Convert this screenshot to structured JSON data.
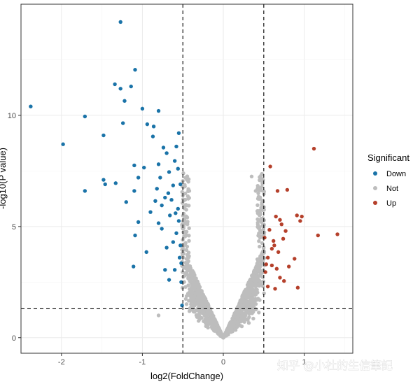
{
  "chart_data": {
    "type": "scatter",
    "title": "",
    "xlabel": "log2(FoldChange)",
    "ylabel": "-log10(P value)",
    "xlim": [
      -2.5,
      1.6
    ],
    "ylim": [
      -0.7,
      15
    ],
    "x_ticks": [
      -2,
      -1,
      0,
      1
    ],
    "y_ticks": [
      0,
      5,
      10
    ],
    "grid": true,
    "thresholds": {
      "x": [
        -0.5,
        0.5
      ],
      "y": 1.3
    },
    "legend": {
      "title": "Significant",
      "position": "right",
      "items": [
        {
          "label": "Down",
          "color": "#1a73a8"
        },
        {
          "label": "Not",
          "color": "#bdbdbd"
        },
        {
          "label": "Up",
          "color": "#b5402b"
        }
      ]
    },
    "series": [
      {
        "name": "Down",
        "color": "#1a73a8",
        "points": [
          [
            -1.27,
            14.2
          ],
          [
            -2.38,
            10.4
          ],
          [
            -1.98,
            8.7
          ],
          [
            -1.71,
            9.95
          ],
          [
            -1.71,
            6.6
          ],
          [
            -1.48,
            9.1
          ],
          [
            -1.48,
            7.1
          ],
          [
            -1.46,
            6.9
          ],
          [
            -1.34,
            11.4
          ],
          [
            -1.27,
            11.2
          ],
          [
            -1.22,
            10.65
          ],
          [
            -1.14,
            11.3
          ],
          [
            -1.24,
            9.65
          ],
          [
            -1.2,
            6.1
          ],
          [
            -1.33,
            6.95
          ],
          [
            -1.09,
            12.05
          ],
          [
            -1.1,
            7.75
          ],
          [
            -1.0,
            10.3
          ],
          [
            -0.98,
            7.65
          ],
          [
            -0.94,
            9.6
          ],
          [
            -1.05,
            7.2
          ],
          [
            -1.05,
            5.2
          ],
          [
            -1.1,
            6.6
          ],
          [
            -1.09,
            4.6
          ],
          [
            -1.11,
            3.2
          ],
          [
            -0.87,
            9.05
          ],
          [
            -0.86,
            9.5
          ],
          [
            -0.8,
            7.8
          ],
          [
            -0.84,
            6.15
          ],
          [
            -0.8,
            10.2
          ],
          [
            -0.72,
            3.05
          ],
          [
            -0.67,
            2.6
          ],
          [
            -0.95,
            3.85
          ],
          [
            -0.82,
            6.7
          ],
          [
            -0.78,
            7.2
          ],
          [
            -0.76,
            4.9
          ],
          [
            -0.74,
            8.55
          ],
          [
            -0.7,
            8.3
          ],
          [
            -0.68,
            6.5
          ],
          [
            -0.66,
            5.5
          ],
          [
            -0.62,
            4.3
          ],
          [
            -0.6,
            7.95
          ],
          [
            -0.58,
            8.6
          ],
          [
            -0.56,
            5.8
          ],
          [
            -0.55,
            9.2
          ],
          [
            -0.54,
            3.6
          ],
          [
            -0.53,
            6.9
          ],
          [
            -0.52,
            2.5
          ],
          [
            -0.51,
            1.45
          ],
          [
            -0.64,
            6.2
          ],
          [
            -0.7,
            4.05
          ],
          [
            -0.9,
            5.65
          ],
          [
            -0.6,
            3.05
          ],
          [
            -0.58,
            4.7
          ],
          [
            -0.76,
            5.95
          ],
          [
            -0.67,
            7.45
          ],
          [
            -0.62,
            6.85
          ],
          [
            -0.55,
            5.25
          ],
          [
            -0.52,
            3.35
          ],
          [
            -0.56,
            7.6
          ],
          [
            -0.72,
            6.3
          ],
          [
            -0.8,
            5.15
          ],
          [
            -0.53,
            4.15
          ],
          [
            -0.59,
            5.6
          ]
        ]
      },
      {
        "name": "Up",
        "color": "#b5402b",
        "points": [
          [
            1.12,
            8.5
          ],
          [
            1.17,
            4.6
          ],
          [
            1.41,
            4.65
          ],
          [
            0.58,
            7.7
          ],
          [
            0.67,
            6.6
          ],
          [
            0.79,
            6.65
          ],
          [
            0.62,
            4.35
          ],
          [
            0.72,
            5.1
          ],
          [
            0.91,
            5.5
          ],
          [
            0.97,
            5.45
          ],
          [
            0.95,
            5.25
          ],
          [
            0.77,
            4.8
          ],
          [
            0.88,
            3.55
          ],
          [
            0.92,
            2.25
          ],
          [
            0.55,
            2.3
          ],
          [
            0.52,
            2.95
          ],
          [
            0.55,
            3.6
          ],
          [
            0.6,
            4.0
          ],
          [
            0.63,
            4.15
          ],
          [
            0.68,
            3.85
          ],
          [
            0.74,
            4.45
          ],
          [
            0.66,
            3.1
          ],
          [
            0.7,
            2.7
          ],
          [
            0.64,
            2.2
          ],
          [
            0.53,
            3.3
          ],
          [
            0.57,
            4.85
          ],
          [
            0.51,
            4.5
          ],
          [
            0.6,
            3.25
          ],
          [
            0.7,
            5.3
          ],
          [
            0.81,
            3.2
          ],
          [
            0.65,
            5.45
          ],
          [
            0.75,
            2.55
          ]
        ]
      }
    ],
    "not_significant": {
      "name": "Not",
      "color": "#bdbdbd",
      "extra_points": [
        [
          -0.8,
          1.0
        ],
        [
          0.35,
          7.25
        ],
        [
          0.4,
          6.6
        ],
        [
          -0.45,
          7.1
        ],
        [
          -0.42,
          6.6
        ]
      ]
    }
  },
  "watermark": "知乎 @小杜的生信筆記"
}
